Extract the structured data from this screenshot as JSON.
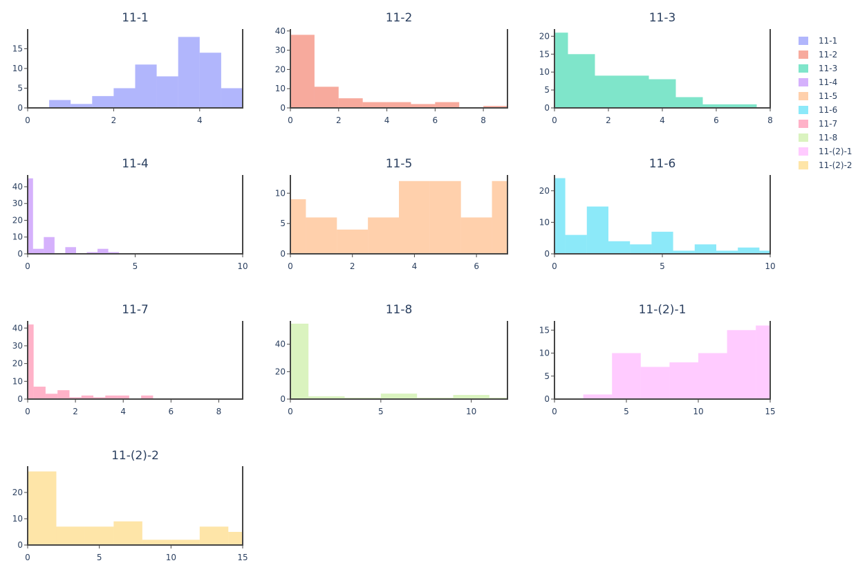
{
  "chart_data": [
    {
      "type": "bar",
      "title": "11-1",
      "color": "#636efa",
      "bin_size": 0.5,
      "bins": [
        [
          0.5,
          2
        ],
        [
          1,
          1
        ],
        [
          1.5,
          3
        ],
        [
          2,
          5
        ],
        [
          2.5,
          11
        ],
        [
          3,
          8
        ],
        [
          3.5,
          18
        ],
        [
          4,
          14
        ],
        [
          4.5,
          5
        ]
      ],
      "xlim": [
        0,
        5
      ],
      "ylim": [
        0,
        20
      ],
      "xticks": [
        0,
        2,
        4
      ],
      "yticks": [
        0,
        5,
        10,
        15
      ]
    },
    {
      "type": "bar",
      "title": "11-2",
      "color": "#ef553b",
      "bin_size": 1,
      "bins": [
        [
          0,
          38
        ],
        [
          1,
          11
        ],
        [
          2,
          5
        ],
        [
          3,
          3
        ],
        [
          4,
          3
        ],
        [
          5,
          2
        ],
        [
          6,
          3
        ],
        [
          7,
          0
        ],
        [
          8,
          1
        ]
      ],
      "xlim": [
        0,
        9
      ],
      "ylim": [
        0,
        41
      ],
      "xticks": [
        0,
        2,
        4,
        6,
        8
      ],
      "yticks": [
        0,
        10,
        20,
        30,
        40
      ]
    },
    {
      "type": "bar",
      "title": "11-3",
      "color": "#00cc96",
      "bin_size": 1,
      "bins": [
        [
          0,
          21
        ],
        [
          0.5,
          15
        ],
        [
          1.5,
          9
        ],
        [
          2.5,
          9
        ],
        [
          3.5,
          8
        ],
        [
          4.5,
          3
        ],
        [
          5.5,
          1
        ],
        [
          6.5,
          1
        ]
      ],
      "bin_widths": [
        0.5,
        1,
        1,
        1,
        1,
        1,
        1,
        1
      ],
      "xlim": [
        0,
        8
      ],
      "ylim": [
        0,
        22
      ],
      "xticks": [
        0,
        2,
        4,
        6,
        8
      ],
      "yticks": [
        0,
        5,
        10,
        15,
        20
      ]
    },
    {
      "type": "bar",
      "title": "11-4",
      "color": "#ab63fa",
      "bin_size": 0.5,
      "bins": [
        [
          0,
          45
        ],
        [
          0.25,
          3
        ],
        [
          0.75,
          10
        ],
        [
          1.25,
          0
        ],
        [
          1.75,
          4
        ],
        [
          2.25,
          0
        ],
        [
          2.75,
          1
        ],
        [
          3.25,
          3
        ],
        [
          3.75,
          1
        ]
      ],
      "bin_widths": [
        0.25,
        0.5,
        0.5,
        0.5,
        0.5,
        0.5,
        0.5,
        0.5,
        0.5
      ],
      "xlim": [
        0,
        10
      ],
      "ylim": [
        0,
        47
      ],
      "xticks": [
        0,
        5,
        10
      ],
      "yticks": [
        0,
        10,
        20,
        30,
        40
      ]
    },
    {
      "type": "bar",
      "title": "11-5",
      "color": "#ffa15a",
      "bin_size": 1,
      "bins": [
        [
          0,
          9
        ],
        [
          0.5,
          6
        ],
        [
          1.5,
          4
        ],
        [
          2.5,
          6
        ],
        [
          3.5,
          12
        ],
        [
          4.5,
          12
        ],
        [
          5.5,
          6
        ],
        [
          6.5,
          12
        ]
      ],
      "bin_widths": [
        0.5,
        1,
        1,
        1,
        1,
        1,
        1,
        0.5
      ],
      "xlim": [
        0,
        7
      ],
      "ylim": [
        0,
        13
      ],
      "xticks": [
        0,
        2,
        4,
        6
      ],
      "yticks": [
        0,
        5,
        10
      ]
    },
    {
      "type": "bar",
      "title": "11-6",
      "color": "#19d3f3",
      "bin_size": 1,
      "bins": [
        [
          0,
          24
        ],
        [
          0.5,
          6
        ],
        [
          1.5,
          15
        ],
        [
          2.5,
          4
        ],
        [
          3.5,
          3
        ],
        [
          4.5,
          7
        ],
        [
          5.5,
          1
        ],
        [
          6.5,
          3
        ],
        [
          7.5,
          1
        ],
        [
          8.5,
          2
        ],
        [
          9.5,
          1
        ]
      ],
      "bin_widths": [
        0.5,
        1,
        1,
        1,
        1,
        1,
        1,
        1,
        1,
        1,
        0.5
      ],
      "xlim": [
        0,
        10
      ],
      "ylim": [
        0,
        25
      ],
      "xticks": [
        0,
        5,
        10
      ],
      "yticks": [
        0,
        10,
        20
      ]
    },
    {
      "type": "bar",
      "title": "11-7",
      "color": "#ff6692",
      "bin_size": 0.5,
      "bins": [
        [
          0,
          42
        ],
        [
          0.25,
          7
        ],
        [
          0.75,
          3
        ],
        [
          1.25,
          5
        ],
        [
          1.75,
          1
        ],
        [
          2.25,
          2
        ],
        [
          2.75,
          1
        ],
        [
          3.25,
          2
        ],
        [
          3.75,
          2
        ],
        [
          4.25,
          0
        ],
        [
          4.75,
          2
        ]
      ],
      "bin_widths": [
        0.25,
        0.5,
        0.5,
        0.5,
        0.5,
        0.5,
        0.5,
        0.5,
        0.5,
        0.5,
        0.5
      ],
      "xlim": [
        0,
        9
      ],
      "ylim": [
        0,
        44
      ],
      "xticks": [
        0,
        2,
        4,
        6,
        8
      ],
      "yticks": [
        0,
        10,
        20,
        30,
        40
      ]
    },
    {
      "type": "bar",
      "title": "11-8",
      "color": "#b6e880",
      "bin_size": 1,
      "bins": [
        [
          0,
          55
        ],
        [
          1,
          2
        ],
        [
          3,
          1
        ],
        [
          5,
          4
        ],
        [
          7,
          1
        ],
        [
          9,
          3
        ],
        [
          11,
          1
        ]
      ],
      "bin_widths": [
        1,
        2,
        2,
        2,
        2,
        2,
        1
      ],
      "xlim": [
        0,
        12
      ],
      "ylim": [
        0,
        57
      ],
      "xticks": [
        0,
        5,
        10
      ],
      "yticks": [
        0,
        20,
        40
      ]
    },
    {
      "type": "bar",
      "title": "11-(2)-1",
      "color": "#ff97ff",
      "bin_size": 2,
      "bins": [
        [
          0,
          0
        ],
        [
          2,
          1
        ],
        [
          4,
          10
        ],
        [
          6,
          7
        ],
        [
          8,
          8
        ],
        [
          10,
          10
        ],
        [
          12,
          15
        ],
        [
          14,
          16
        ]
      ],
      "bin_widths": [
        2,
        2,
        2,
        2,
        2,
        2,
        2,
        1
      ],
      "xlim": [
        0,
        15
      ],
      "ylim": [
        0,
        17
      ],
      "xticks": [
        0,
        5,
        10,
        15
      ],
      "yticks": [
        0,
        5,
        10,
        15
      ]
    },
    {
      "type": "bar",
      "title": "11-(2)-2",
      "color": "#fecb52",
      "bin_size": 2,
      "bins": [
        [
          0,
          28
        ],
        [
          2,
          7
        ],
        [
          4,
          7
        ],
        [
          6,
          9
        ],
        [
          8,
          2
        ],
        [
          10,
          2
        ],
        [
          12,
          7
        ],
        [
          14,
          5
        ]
      ],
      "bin_widths": [
        2,
        2,
        2,
        2,
        2,
        2,
        2,
        1
      ],
      "xlim": [
        0,
        15
      ],
      "ylim": [
        0,
        30
      ],
      "xticks": [
        0,
        5,
        10,
        15
      ],
      "yticks": [
        0,
        10,
        20
      ]
    }
  ],
  "legend": {
    "position": "right",
    "items": [
      {
        "label": "11-1",
        "color": "#636efa"
      },
      {
        "label": "11-2",
        "color": "#ef553b"
      },
      {
        "label": "11-3",
        "color": "#00cc96"
      },
      {
        "label": "11-4",
        "color": "#ab63fa"
      },
      {
        "label": "11-5",
        "color": "#ffa15a"
      },
      {
        "label": "11-6",
        "color": "#19d3f3"
      },
      {
        "label": "11-7",
        "color": "#ff6692"
      },
      {
        "label": "11-8",
        "color": "#b6e880"
      },
      {
        "label": "11-(2)-1",
        "color": "#ff97ff"
      },
      {
        "label": "11-(2)-2",
        "color": "#fecb52"
      }
    ]
  }
}
